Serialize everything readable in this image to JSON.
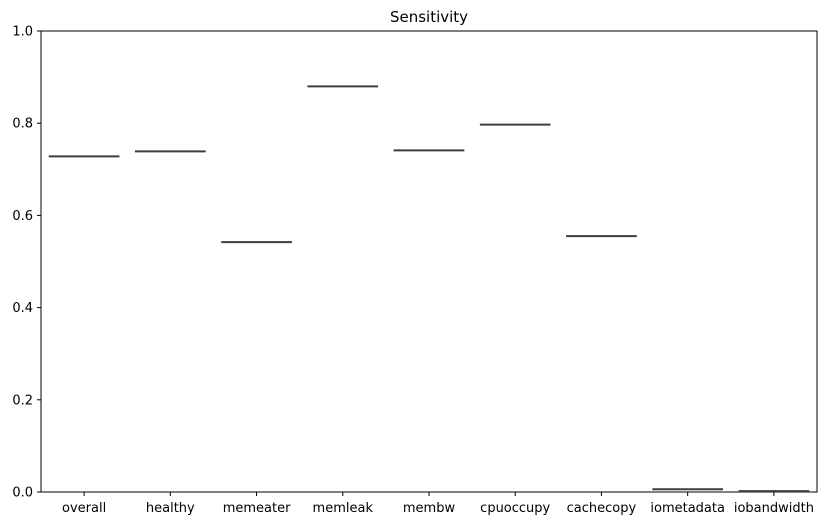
{
  "chart_data": {
    "type": "box",
    "title": "Sensitivity",
    "xlabel": "",
    "ylabel": "",
    "categories": [
      "overall",
      "healthy",
      "memeater",
      "memleak",
      "membw",
      "cpuoccupy",
      "cachecopy",
      "iometadata",
      "iobandwidth"
    ],
    "values": [
      0.728,
      0.739,
      0.542,
      0.88,
      0.741,
      0.797,
      0.555,
      0.006,
      0.002
    ],
    "ylim": [
      0,
      1.0
    ],
    "yticks": [
      "0.0",
      "0.2",
      "0.4",
      "0.6",
      "0.8",
      "1.0"
    ],
    "grid": false,
    "legend": "none",
    "colors": {
      "median_line": "#3d3d3d",
      "axis": "#000000"
    }
  }
}
